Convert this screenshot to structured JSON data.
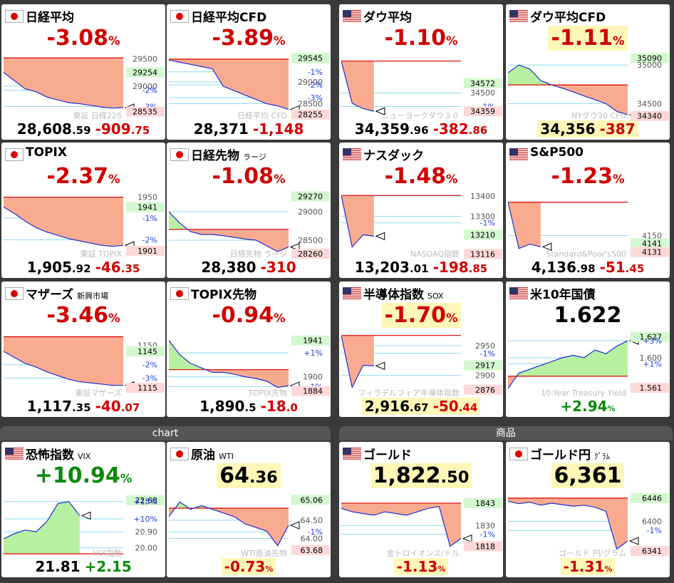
{
  "sections": [
    "chart",
    "商品"
  ],
  "tiles": [
    {
      "flag": "jp",
      "name": "日経平均",
      "mode": "pct",
      "up": false,
      "pct": "-3.08",
      "pct_unit": "%",
      "price_int": "28,608",
      "price_dec": ".59",
      "chg_int": "-909",
      "chg_dec": ".75",
      "watermark": "東証 日経225",
      "ylim": [
        28400,
        29600
      ],
      "ref": 29518,
      "line": [
        29254,
        29100,
        28950,
        28900,
        28800,
        28750,
        28700,
        28680,
        28650,
        28620,
        28600,
        28610
      ],
      "ticks": [
        {
          "value": 29500
        },
        {
          "value": 29254,
          "kind": "hi"
        },
        {
          "value": 29000
        },
        {
          "value": 28928,
          "label": "-2%",
          "kind": "pct"
        },
        {
          "value": 28630,
          "label": "-3%",
          "kind": "pct"
        },
        {
          "value": 28535,
          "kind": "lo"
        }
      ]
    },
    {
      "flag": "jp",
      "name": "日経平均CFD",
      "mode": "pct",
      "up": false,
      "pct": "-3.89",
      "pct_unit": "%",
      "price_int": "28,371",
      "chg_int": "-1,148",
      "watermark": "日経平均 CFD",
      "ylim": [
        28150,
        29650
      ],
      "ref": 29520,
      "line": [
        29500,
        29450,
        29400,
        29350,
        29300,
        28900,
        28800,
        28700,
        28600,
        28500,
        28450,
        28371
      ],
      "ticks": [
        {
          "value": 29545,
          "kind": "hi"
        },
        {
          "value": 29230,
          "label": "-1%",
          "kind": "pct"
        },
        {
          "value": 29000
        },
        {
          "value": 28930,
          "label": "-2%",
          "kind": "pct"
        },
        {
          "value": 28640,
          "label": "-3%",
          "kind": "pct"
        },
        {
          "value": 28500
        },
        {
          "value": 28255,
          "kind": "lo"
        }
      ]
    },
    {
      "flag": "us",
      "name": "ダウ平均",
      "mode": "pct",
      "up": false,
      "pct": "-1.10",
      "pct_unit": "%",
      "price_int": "34,359",
      "price_dec": ".96",
      "chg_int": "-382",
      "chg_dec": ".86",
      "watermark": "ニューヨークダウ３０",
      "ylim": [
        34300,
        34800
      ],
      "ref": 34742,
      "line": [
        34742,
        34420,
        34380,
        34359,
        null,
        null,
        null,
        null,
        null,
        null,
        null,
        null
      ],
      "ticks": [
        {
          "value": 34572,
          "kind": "hi"
        },
        {
          "value": 34500
        },
        {
          "value": 34395,
          "label": "-1%",
          "kind": "pct"
        },
        {
          "value": 34359,
          "kind": "lo"
        }
      ]
    },
    {
      "flag": "us",
      "name": "ダウ平均CFD",
      "mode": "pct",
      "up": false,
      "hl_top": true,
      "hl_bottom": true,
      "pct": "-1.11",
      "pct_unit": "%",
      "price_int": "34,356",
      "chg_int": "-387",
      "watermark": "NYダウ30 CFD",
      "ylim": [
        34300,
        35150
      ],
      "ref": 34742,
      "line": [
        34900,
        35000,
        34950,
        34800,
        34742,
        34700,
        34650,
        34600,
        34550,
        34500,
        34400,
        34356
      ],
      "ticks": [
        {
          "value": 35090,
          "kind": "hi"
        },
        {
          "value": 35000
        },
        {
          "value": 34500
        },
        {
          "value": 34340,
          "kind": "lo"
        }
      ]
    },
    {
      "flag": "jp",
      "name": "TOPIX",
      "mode": "pct",
      "up": false,
      "pct": "-2.37",
      "pct_unit": "%",
      "price_int": "1,905",
      "price_dec": ".92",
      "chg_int": "-46",
      "chg_dec": ".35",
      "watermark": "東証 TOPIX",
      "ylim": [
        1895,
        1955
      ],
      "ref": 1950,
      "line": [
        1941,
        1935,
        1928,
        1922,
        1918,
        1915,
        1912,
        1910,
        1908,
        1906,
        1905,
        1906
      ],
      "ticks": [
        {
          "value": 1950
        },
        {
          "value": 1941,
          "kind": "hi"
        },
        {
          "value": 1931,
          "label": "-1%",
          "kind": "pct"
        },
        {
          "value": 1911,
          "label": "-2%",
          "kind": "pct"
        },
        {
          "value": 1901,
          "kind": "lo"
        }
      ]
    },
    {
      "flag": "jp",
      "name": "日経先物",
      "sub": "ラージ",
      "mode": "pct",
      "up": false,
      "pct": "-1.08",
      "pct_unit": "%",
      "price_int": "28,380",
      "chg_int": "-310",
      "watermark": "日経先物 ラージ",
      "ylim": [
        28200,
        29350
      ],
      "ref": 28690,
      "line": [
        29000,
        28800,
        28650,
        28600,
        28600,
        28580,
        28550,
        28520,
        28500,
        28400,
        28300,
        28380
      ],
      "ticks": [
        {
          "value": 29270,
          "kind": "hi"
        },
        {
          "value": 29000
        },
        {
          "value": 28500
        },
        {
          "value": 28260,
          "kind": "lo"
        }
      ]
    },
    {
      "flag": "us",
      "name": "ナスダック",
      "mode": "pct",
      "up": false,
      "pct": "-1.48",
      "pct_unit": "%",
      "price_int": "13,203",
      "price_dec": ".01",
      "chg_int": "-198",
      "chg_dec": ".85",
      "watermark": "NASDAQ指数",
      "ylim": [
        13100,
        13420
      ],
      "ref": 13402,
      "line": [
        13402,
        13150,
        13210,
        13203,
        null,
        null,
        null,
        null,
        null,
        null,
        null,
        null
      ],
      "ticks": [
        {
          "value": 13400
        },
        {
          "value": 13300
        },
        {
          "value": 13268,
          "label": "-1%",
          "kind": "pct"
        },
        {
          "value": 13210,
          "kind": "hi"
        },
        {
          "value": 13116,
          "kind": "lo"
        }
      ]
    },
    {
      "flag": "us",
      "name": "S&P500",
      "mode": "pct",
      "up": false,
      "pct": "-1.23",
      "pct_unit": "%",
      "price_int": "4,136",
      "price_dec": ".98",
      "chg_int": "-51",
      "chg_dec": ".45",
      "watermark": "Standard&Poor's500",
      "ylim": [
        4125,
        4200
      ],
      "ref": 4188,
      "line": [
        4188,
        4135,
        4140,
        4137,
        null,
        null,
        null,
        null,
        null,
        null,
        null,
        null
      ],
      "ticks": [
        {
          "value": 4150
        },
        {
          "value": 4141,
          "kind": "hi"
        },
        {
          "value": 4131,
          "kind": "lo"
        }
      ]
    },
    {
      "flag": "jp",
      "name": "マザーズ",
      "sub": "新興市場",
      "mode": "pct",
      "up": false,
      "pct": "-3.46",
      "pct_unit": "%",
      "price_int": "1,117",
      "price_dec": ".35",
      "chg_int": "-40",
      "chg_dec": ".07",
      "watermark": "東証マザーズ",
      "ylim": [
        1108,
        1162
      ],
      "ref": 1157,
      "line": [
        1145,
        1140,
        1135,
        1132,
        1128,
        1125,
        1122,
        1120,
        1119,
        1118,
        1117,
        1117
      ],
      "ticks": [
        {
          "value": 1150
        },
        {
          "value": 1145,
          "kind": "hi"
        },
        {
          "value": 1134,
          "label": "-2%",
          "kind": "pct"
        },
        {
          "value": 1123,
          "label": "-3%",
          "kind": "pct"
        },
        {
          "value": 1115,
          "kind": "lo"
        }
      ]
    },
    {
      "flag": "jp",
      "name": "TOPIX先物",
      "mode": "pct",
      "up": false,
      "pct": "-0.94",
      "pct_unit": "%",
      "price_int": "1,890",
      "price_dec": ".5",
      "chg_int": "-18",
      "chg_dec": ".0",
      "watermark": "TOPIX先物",
      "ylim": [
        1878,
        1952
      ],
      "ref": 1908,
      "line": [
        1941,
        1925,
        1915,
        1910,
        1905,
        1905,
        1903,
        1900,
        1898,
        1895,
        1888,
        1890
      ],
      "ticks": [
        {
          "value": 1941,
          "kind": "hi"
        },
        {
          "value": 1927,
          "label": "+1%",
          "kind": "pct"
        },
        {
          "value": 1900
        },
        {
          "value": 1889,
          "label": "-1%",
          "kind": "pct"
        },
        {
          "value": 1884,
          "kind": "lo"
        }
      ]
    },
    {
      "flag": "us",
      "name": "半導体指数",
      "sub": "SOX",
      "mode": "pct",
      "up": false,
      "hl_top": true,
      "hl_bottom": true,
      "pct": "-1.70",
      "pct_unit": "%",
      "price_int": "2,916",
      "price_dec": ".67",
      "chg_int": "-50",
      "chg_dec": ".44",
      "watermark": "フィラデルフィア半導体指数",
      "ylim": [
        2865,
        2975
      ],
      "ref": 2967,
      "line": [
        2967,
        2880,
        2917,
        2916,
        null,
        null,
        null,
        null,
        null,
        null,
        null,
        null
      ],
      "ticks": [
        {
          "value": 2950
        },
        {
          "value": 2937,
          "label": "-1%",
          "kind": "pct"
        },
        {
          "value": 2917,
          "kind": "hi"
        },
        {
          "value": 2900
        },
        {
          "value": 2876,
          "kind": "lo"
        }
      ]
    },
    {
      "flag": "us",
      "name": "米10年国債",
      "mode": "price",
      "up": true,
      "price_int": "1.622",
      "pct": "+2.94",
      "pct_unit": "%",
      "watermark": "10-Year Treasury Yield",
      "ylim": [
        1.55,
        1.635
      ],
      "ref": 1.576,
      "line": [
        1.56,
        1.58,
        1.585,
        1.59,
        1.595,
        1.6,
        1.603,
        1.6,
        1.61,
        1.605,
        1.615,
        1.622
      ],
      "ticks": [
        {
          "value": 1.627,
          "kind": "hi"
        },
        {
          "value": 1.622,
          "label": "+3%",
          "kind": "pct"
        },
        {
          "value": 1.6,
          "label": "1.600"
        },
        {
          "value": 1.592,
          "label": "+1%",
          "kind": "pct"
        },
        {
          "value": 1.561,
          "kind": "lo"
        }
      ]
    },
    {
      "flag": "us",
      "name": "恐怖指数",
      "sub": "VIX",
      "mode": "pct",
      "up": true,
      "pct": "+10.94",
      "pct_unit": "%",
      "price_int": "21.81",
      "chg_int": "+2.15",
      "watermark": "VIX指数",
      "ylim": [
        19.5,
        23.2
      ],
      "ref": 19.66,
      "line": [
        20.5,
        20.8,
        21.0,
        20.9,
        21.5,
        22.5,
        22.6,
        21.81,
        null,
        null,
        null,
        null
      ],
      "ticks": [
        {
          "value": 22.68,
          "kind": "hi"
        },
        {
          "value": 22.61,
          "label": "+15%",
          "kind": "pct"
        },
        {
          "value": 21.63,
          "label": "+10%",
          "kind": "pct"
        },
        {
          "value": 20.9,
          "label": "20.90"
        },
        {
          "value": 20,
          "label": "20.00"
        }
      ]
    },
    {
      "flag": "jp",
      "name": "原油",
      "sub": "WTI",
      "mode": "price",
      "up": false,
      "hl_top": true,
      "hl_bottom": true,
      "price_int": "64",
      "price_dec": ".36",
      "pct": "-0.73",
      "pct_unit": "%",
      "watermark": "WTI原油先物",
      "ylim": [
        63.5,
        65.3
      ],
      "ref": 64.83,
      "line": [
        64.6,
        65.0,
        64.8,
        64.9,
        64.8,
        64.7,
        64.6,
        64.4,
        64.3,
        64.2,
        63.8,
        64.36
      ],
      "ticks": [
        {
          "value": 65.06,
          "kind": "hi"
        },
        {
          "value": 64.5,
          "label": "64.50"
        },
        {
          "value": 64.18,
          "label": "-1%",
          "kind": "pct"
        },
        {
          "value": 64,
          "label": "64.00"
        },
        {
          "value": 63.68,
          "kind": "lo"
        }
      ]
    },
    {
      "flag": "us",
      "name": "ゴールド",
      "mode": "price",
      "up": false,
      "hl_top": true,
      "hl_bottom": true,
      "price_int": "1,822",
      "price_dec": ".50",
      "pct": "-1.13",
      "pct_unit": "%",
      "watermark": "金トロイオンス/ドル",
      "ylim": [
        1812,
        1850
      ],
      "ref": 1843,
      "line": [
        1840,
        1838,
        1837,
        1836,
        1838,
        1837,
        1836,
        1838,
        1840,
        1841,
        1818,
        1822.5
      ],
      "ticks": [
        {
          "value": 1843,
          "kind": "hi"
        },
        {
          "value": 1830
        },
        {
          "value": 1825,
          "label": "-1%",
          "kind": "pct"
        },
        {
          "value": 1818,
          "kind": "lo"
        }
      ]
    },
    {
      "flag": "jp",
      "name": "ゴールド円",
      "sub": "ｸﾞﾗﾑ",
      "mode": "price",
      "up": false,
      "hl_top": true,
      "hl_bottom": true,
      "price_int": "6,361",
      "pct": "-1.31",
      "pct_unit": "%",
      "watermark": "ゴールド 円/グラム",
      "ylim": [
        6330,
        6460
      ],
      "ref": 6446,
      "line": [
        6440,
        6435,
        6438,
        6432,
        6436,
        6433,
        6430,
        6432,
        6428,
        6420,
        6345,
        6361
      ],
      "ticks": [
        {
          "value": 6446,
          "kind": "hi"
        },
        {
          "value": 6400
        },
        {
          "value": 6382,
          "label": "-1%",
          "kind": "pct"
        },
        {
          "value": 6341,
          "kind": "lo"
        }
      ]
    }
  ]
}
